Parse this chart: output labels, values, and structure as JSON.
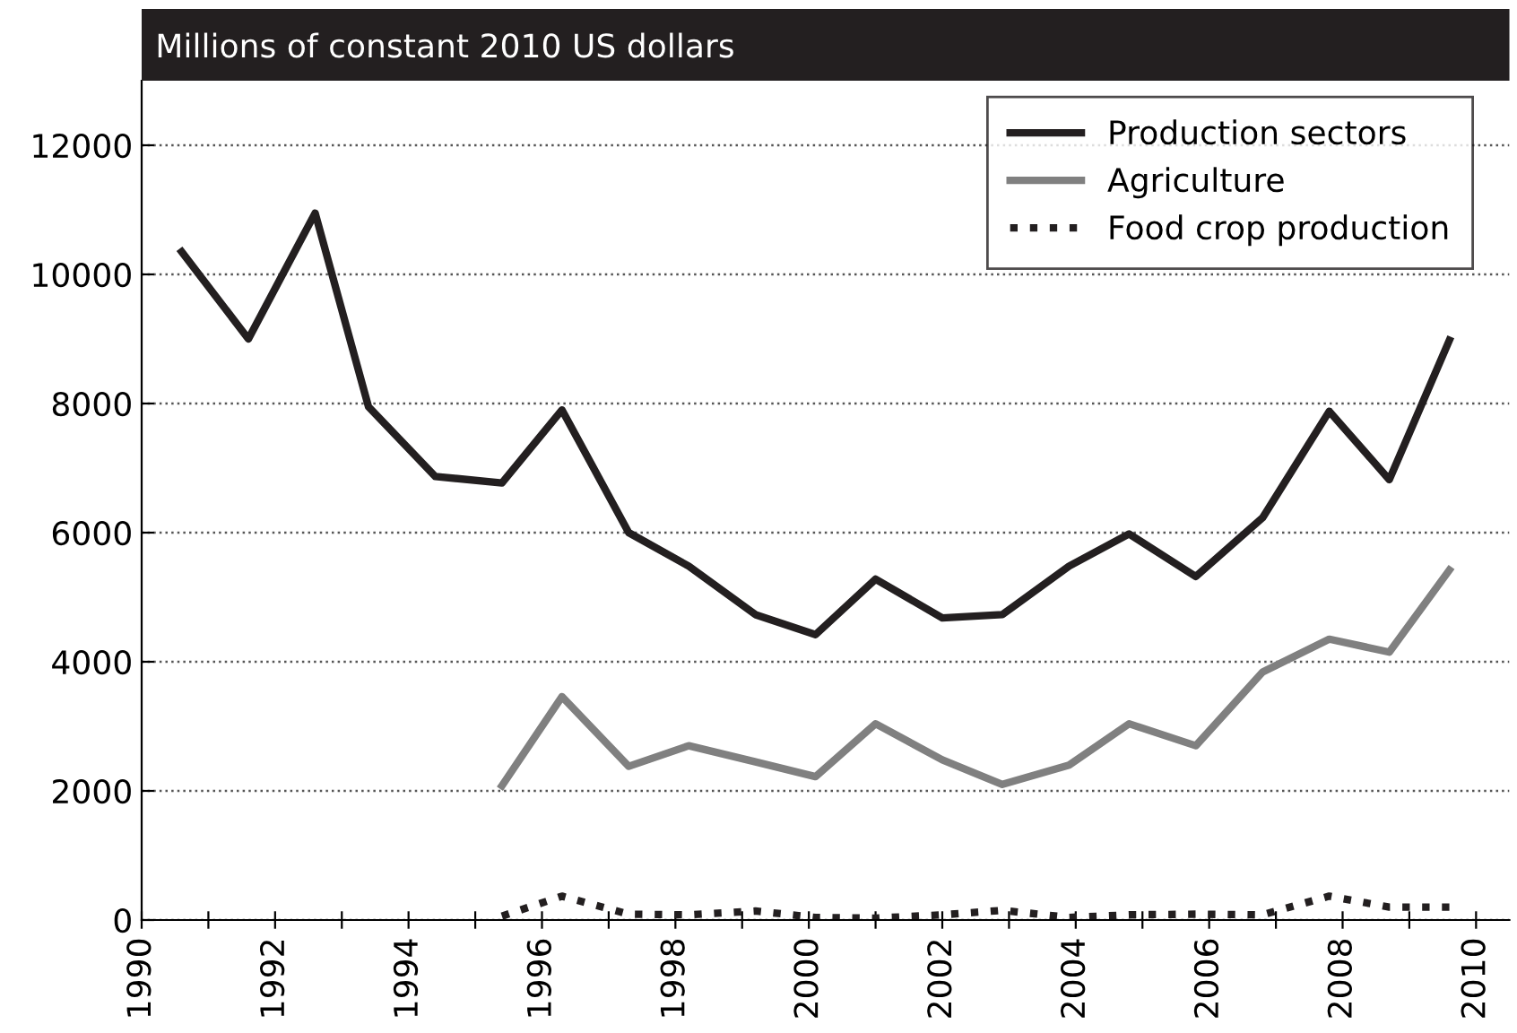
{
  "chart_data": {
    "type": "line",
    "subtitle": "Millions of constant 2010 US dollars",
    "xlim": [
      1990,
      2010.5
    ],
    "xticks": [
      1990,
      {
        "value": 1991,
        "label": null
      },
      1992,
      {
        "value": 1993,
        "label": null
      },
      1994,
      {
        "value": 1995,
        "label": null
      },
      1996,
      {
        "value": 1997,
        "label": null
      },
      1998,
      {
        "value": 1999,
        "label": null
      },
      2000,
      {
        "value": 2001,
        "label": null
      },
      2002,
      {
        "value": 2003,
        "label": null
      },
      2004,
      {
        "value": 2005,
        "label": null
      },
      2006,
      {
        "value": 2007,
        "label": null
      },
      2008,
      {
        "value": 2009,
        "label": null
      },
      2010
    ],
    "ylim": [
      0,
      13000
    ],
    "yticks": [
      0,
      2000,
      4000,
      6000,
      8000,
      10000,
      12000
    ],
    "grid": "y",
    "legend": "top right",
    "line_style": "solid",
    "series": [
      {
        "name": "Production sectors",
        "color": "#231f20",
        "x": [
          1990.6,
          1991.6,
          1992.6,
          1993.4,
          1994.4,
          1995.4,
          1996.3,
          1997.3,
          1998.2,
          1999.2,
          2000.1,
          2001.0,
          2002.0,
          2002.9,
          2003.9,
          2004.8,
          2005.8,
          2006.8,
          2007.8,
          2008.7,
          2009.6
        ],
        "values": [
          10350,
          9000,
          10950,
          7950,
          6870,
          6770,
          7900,
          6000,
          5480,
          4730,
          4420,
          5280,
          4680,
          4730,
          5480,
          5980,
          5320,
          6230,
          7880,
          6820,
          8980
        ]
      },
      {
        "name": "Agriculture",
        "color": "#808080",
        "x": [
          1995.4,
          1996.3,
          1997.3,
          1998.2,
          1999.2,
          2000.1,
          2001.0,
          2002.0,
          2002.9,
          2003.9,
          2004.8,
          2005.8,
          2006.8,
          2007.8,
          2008.7,
          2009.6
        ],
        "values": [
          2080,
          3460,
          2380,
          2700,
          2450,
          2220,
          3040,
          2480,
          2100,
          2400,
          3040,
          2700,
          3840,
          4350,
          4150,
          5420
        ]
      },
      {
        "name": "Food crop production",
        "color": "#231f20",
        "line_style": "dotted",
        "x": [
          1995.4,
          1996.3,
          1997.3,
          1998.2,
          1999.2,
          2000.1,
          2001.0,
          2002.0,
          2002.9,
          2003.9,
          2004.8,
          2005.8,
          2006.8,
          2007.8,
          2008.7,
          2009.6
        ],
        "values": [
          60,
          370,
          90,
          80,
          140,
          40,
          30,
          80,
          150,
          40,
          80,
          90,
          80,
          370,
          200,
          200
        ]
      }
    ]
  }
}
